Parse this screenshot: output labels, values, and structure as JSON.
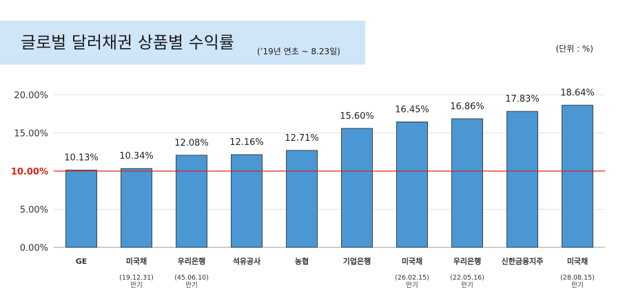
{
  "header": {
    "title": "글로벌 달러채권 상품별 수익률",
    "subtitle": "(’19년 연초 ~ 8.23일)",
    "unit": "(단위 : %)"
  },
  "colors": {
    "title_bg": "#cfe5f8",
    "bar": "#4a97d3",
    "bar_stroke": "#222222",
    "reference_line": "#e0201c",
    "grid": "#e2e2e2"
  },
  "chart_data": {
    "type": "bar",
    "title": "글로벌 달러채권 상품별 수익률",
    "subtitle": "(’19년 연초 ~ 8.23일)",
    "unit": "(단위 : %)",
    "categories": [
      "GE",
      "미국채",
      "우리은행",
      "석유공사",
      "농협",
      "기업은행",
      "미국채",
      "우리은행",
      "신한금융지주",
      "미국채"
    ],
    "category_notes": [
      [],
      [
        "(19.12.31)",
        "만기"
      ],
      [
        "(45.06.10)",
        "만기"
      ],
      [],
      [],
      [],
      [
        "(26.02.15)",
        "만기"
      ],
      [
        "(22.05.16)",
        "만기"
      ],
      [],
      [
        "(28.08.15)",
        "만기"
      ]
    ],
    "values": [
      10.13,
      10.34,
      12.08,
      12.16,
      12.71,
      15.6,
      16.45,
      16.86,
      17.83,
      18.64
    ],
    "value_labels": [
      "10.13%",
      "10.34%",
      "12.08%",
      "12.16%",
      "12.71%",
      "15.60%",
      "16.45%",
      "16.86%",
      "17.83%",
      "18.64%"
    ],
    "yticks": [
      0,
      5,
      10,
      15,
      20
    ],
    "ytick_labels": [
      "0.00%",
      "5.00%",
      "10.00%",
      "15.00%",
      "20.00%"
    ],
    "ylim": [
      0,
      21
    ],
    "reference_line": 10,
    "grid": true,
    "legend": "none"
  }
}
